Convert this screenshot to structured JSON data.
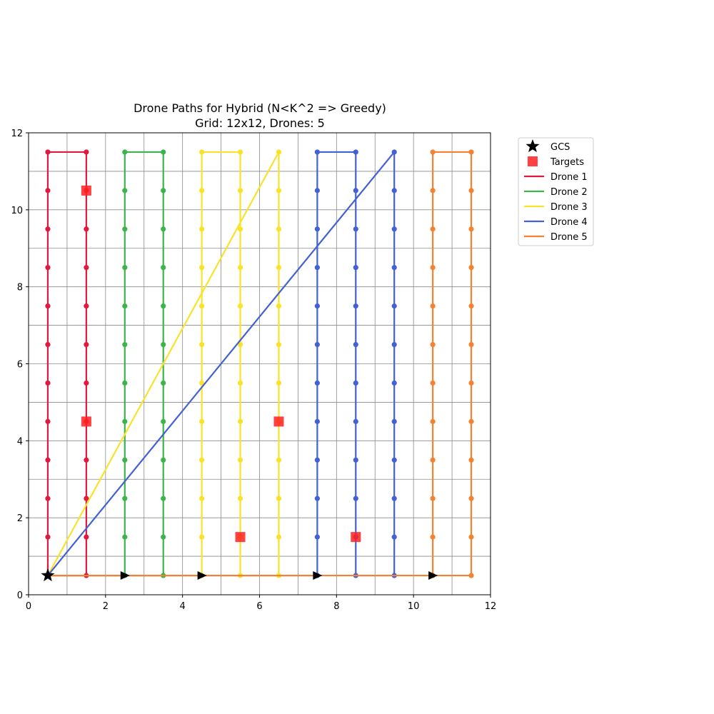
{
  "chart_data": {
    "type": "line",
    "title": "Drone Paths for Hybrid (N<K^2 => Greedy)",
    "subtitle": "Grid: 12x12, Drones: 5",
    "xlabel": "",
    "ylabel": "",
    "xlim": [
      0,
      12
    ],
    "ylim": [
      0,
      12
    ],
    "xticks": [
      "0",
      "2",
      "4",
      "6",
      "8",
      "10",
      "12"
    ],
    "yticks": [
      "0",
      "2",
      "4",
      "6",
      "8",
      "10",
      "12"
    ],
    "grid": true,
    "grid_step": 1,
    "legend_position": "outside-top-right",
    "gcs": {
      "name": "GCS",
      "x": 0.5,
      "y": 0.5,
      "color": "#000000"
    },
    "targets": {
      "name": "Targets",
      "color": "#ff2020",
      "points": [
        [
          1.5,
          10.5
        ],
        [
          1.5,
          4.5
        ],
        [
          6.5,
          4.5
        ],
        [
          5.5,
          1.5
        ],
        [
          8.5,
          1.5
        ]
      ]
    },
    "arrows": [
      [
        2.5,
        0.5
      ],
      [
        4.5,
        0.5
      ],
      [
        7.5,
        0.5
      ],
      [
        10.5,
        0.5
      ]
    ],
    "series": [
      {
        "name": "Drone 1",
        "color": "#e0193f",
        "path": [
          [
            0.5,
            0.5
          ],
          [
            0.5,
            11.5
          ],
          [
            1.5,
            11.5
          ],
          [
            1.5,
            0.5
          ],
          [
            0.5,
            0.5
          ]
        ],
        "columns": [
          0.5,
          1.5
        ]
      },
      {
        "name": "Drone 2",
        "color": "#3cb44b",
        "path": [
          [
            0.5,
            0.5
          ],
          [
            2.5,
            0.5
          ],
          [
            2.5,
            11.5
          ],
          [
            3.5,
            11.5
          ],
          [
            3.5,
            0.5
          ],
          [
            0.5,
            0.5
          ]
        ],
        "columns": [
          2.5,
          3.5
        ]
      },
      {
        "name": "Drone 3",
        "color": "#fbe22a",
        "path": [
          [
            0.5,
            0.5
          ],
          [
            4.5,
            0.5
          ],
          [
            4.5,
            11.5
          ],
          [
            5.5,
            11.5
          ],
          [
            5.5,
            0.5
          ],
          [
            6.5,
            0.5
          ],
          [
            6.5,
            11.5
          ],
          [
            0.5,
            0.5
          ]
        ],
        "columns": [
          4.5,
          5.5,
          6.5
        ]
      },
      {
        "name": "Drone 4",
        "color": "#4361d3",
        "path": [
          [
            0.5,
            0.5
          ],
          [
            7.5,
            0.5
          ],
          [
            7.5,
            11.5
          ],
          [
            8.5,
            11.5
          ],
          [
            8.5,
            0.5
          ],
          [
            9.5,
            0.5
          ],
          [
            9.5,
            11.5
          ],
          [
            0.5,
            0.5
          ]
        ],
        "columns": [
          7.5,
          8.5,
          9.5
        ]
      },
      {
        "name": "Drone 5",
        "color": "#f58231",
        "path": [
          [
            0.5,
            0.5
          ],
          [
            10.5,
            0.5
          ],
          [
            10.5,
            11.5
          ],
          [
            11.5,
            11.5
          ],
          [
            11.5,
            0.5
          ],
          [
            0.5,
            0.5
          ]
        ],
        "columns": [
          10.5,
          11.5
        ]
      }
    ]
  }
}
